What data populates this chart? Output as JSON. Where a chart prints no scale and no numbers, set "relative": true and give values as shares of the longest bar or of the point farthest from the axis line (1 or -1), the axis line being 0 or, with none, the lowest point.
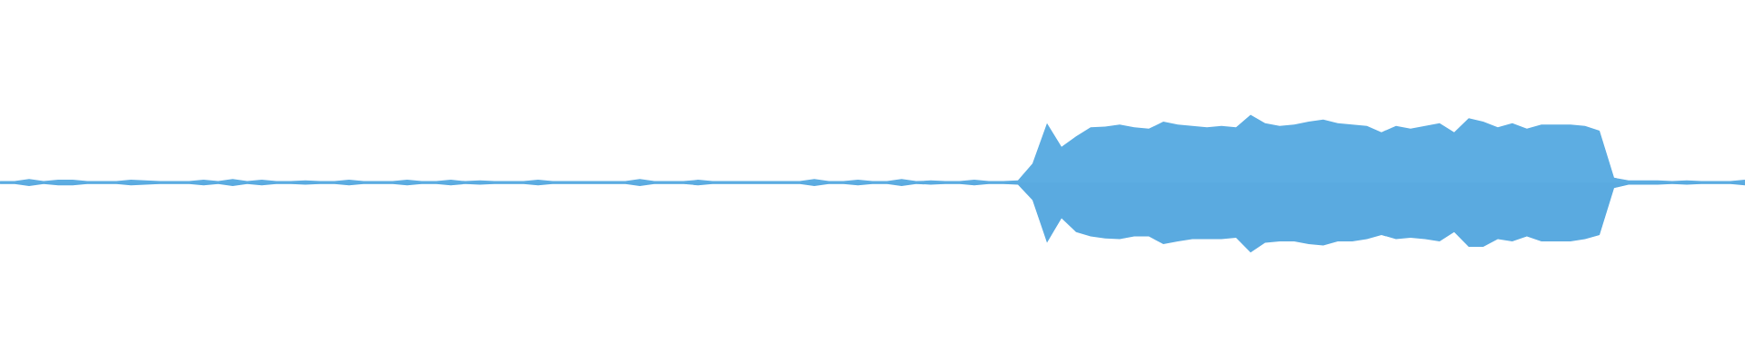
{
  "chart_data": {
    "type": "area",
    "relative": true,
    "categories": [
      null,
      null,
      null,
      null,
      null,
      null,
      null,
      null,
      null,
      null,
      null,
      null,
      null,
      null,
      null,
      null,
      null,
      null,
      null,
      null,
      null,
      null,
      null,
      null,
      null,
      null,
      null,
      null,
      null,
      null,
      null,
      null,
      null,
      null,
      null,
      null,
      null,
      null,
      null,
      null,
      null,
      null,
      null,
      null,
      null,
      null,
      null,
      null,
      null,
      null,
      null,
      null,
      null,
      null,
      null,
      null,
      null,
      null,
      null,
      null,
      null,
      null,
      null,
      null,
      null,
      null,
      null,
      null,
      null,
      null,
      null,
      null,
      null,
      null,
      null,
      null,
      null,
      null,
      null,
      null,
      null,
      null,
      null,
      null,
      null,
      null,
      null,
      null,
      null,
      null,
      null,
      null,
      null,
      null,
      null,
      null,
      null,
      null,
      null,
      null,
      null,
      null,
      null,
      null,
      null,
      null,
      null,
      null,
      null,
      null,
      null,
      null,
      null,
      null,
      null,
      null,
      null,
      null,
      null,
      null,
      null
    ],
    "series": [
      {
        "color": "#5dade2",
        "values": [
          0.02,
          0.02,
          0.05,
          0.02,
          0.04,
          0.04,
          0.02,
          0.02,
          0.02,
          0.04,
          0.03,
          0.02,
          0.02,
          0.02,
          0.04,
          0.02,
          0.05,
          0.02,
          0.04,
          0.02,
          0.02,
          0.03,
          0.02,
          0.02,
          0.04,
          0.02,
          0.02,
          0.02,
          0.04,
          0.02,
          0.02,
          0.04,
          0.02,
          0.03,
          0.02,
          0.02,
          0.02,
          0.04,
          0.02,
          0.02,
          0.02,
          0.02,
          0.02,
          0.02,
          0.05,
          0.02,
          0.02,
          0.02,
          0.04,
          0.02,
          0.02,
          0.02,
          0.02,
          0.02,
          0.02,
          0.02,
          0.05,
          0.02,
          0.02,
          0.04,
          0.02,
          0.02,
          0.05,
          0.02,
          0.03,
          0.02,
          0.02,
          0.04,
          0.02,
          0.02,
          0.03,
          0.27,
          0.85,
          0.51,
          0.66,
          0.79,
          0.8,
          0.83,
          0.79,
          0.77,
          0.87,
          0.83,
          0.81,
          0.79,
          0.81,
          0.79,
          0.97,
          0.85,
          0.81,
          0.83,
          0.87,
          0.9,
          0.85,
          0.83,
          0.81,
          0.72,
          0.81,
          0.77,
          0.81,
          0.85,
          0.72,
          0.92,
          0.87,
          0.79,
          0.85,
          0.77,
          0.83,
          0.83,
          0.83,
          0.81,
          0.74,
          0.07,
          0.03,
          0.03,
          0.03,
          0.02,
          0.03,
          0.02,
          0.02,
          0.02,
          0.04
        ]
      },
      {
        "color": "#5aaae0",
        "values": [
          -0.02,
          -0.02,
          -0.05,
          -0.02,
          -0.04,
          -0.04,
          -0.02,
          -0.02,
          -0.02,
          -0.04,
          -0.03,
          -0.02,
          -0.02,
          -0.02,
          -0.04,
          -0.02,
          -0.05,
          -0.02,
          -0.04,
          -0.02,
          -0.02,
          -0.03,
          -0.02,
          -0.02,
          -0.04,
          -0.02,
          -0.02,
          -0.02,
          -0.04,
          -0.02,
          -0.02,
          -0.04,
          -0.02,
          -0.03,
          -0.02,
          -0.02,
          -0.02,
          -0.04,
          -0.02,
          -0.02,
          -0.02,
          -0.02,
          -0.02,
          -0.02,
          -0.05,
          -0.02,
          -0.02,
          -0.02,
          -0.04,
          -0.02,
          -0.02,
          -0.02,
          -0.02,
          -0.02,
          -0.02,
          -0.02,
          -0.05,
          -0.02,
          -0.02,
          -0.04,
          -0.02,
          -0.02,
          -0.05,
          -0.02,
          -0.03,
          -0.02,
          -0.02,
          -0.04,
          -0.02,
          -0.02,
          -0.03,
          -0.25,
          -0.86,
          -0.51,
          -0.71,
          -0.77,
          -0.8,
          -0.81,
          -0.77,
          -0.77,
          -0.88,
          -0.84,
          -0.81,
          -0.81,
          -0.81,
          -0.79,
          -1,
          -0.86,
          -0.84,
          -0.84,
          -0.88,
          -0.9,
          -0.84,
          -0.84,
          -0.81,
          -0.75,
          -0.81,
          -0.79,
          -0.81,
          -0.84,
          -0.71,
          -0.92,
          -0.92,
          -0.81,
          -0.84,
          -0.77,
          -0.84,
          -0.84,
          -0.84,
          -0.81,
          -0.75,
          -0.08,
          -0.03,
          -0.03,
          -0.03,
          -0.02,
          -0.03,
          -0.02,
          -0.02,
          -0.02,
          -0.04
        ]
      }
    ]
  }
}
